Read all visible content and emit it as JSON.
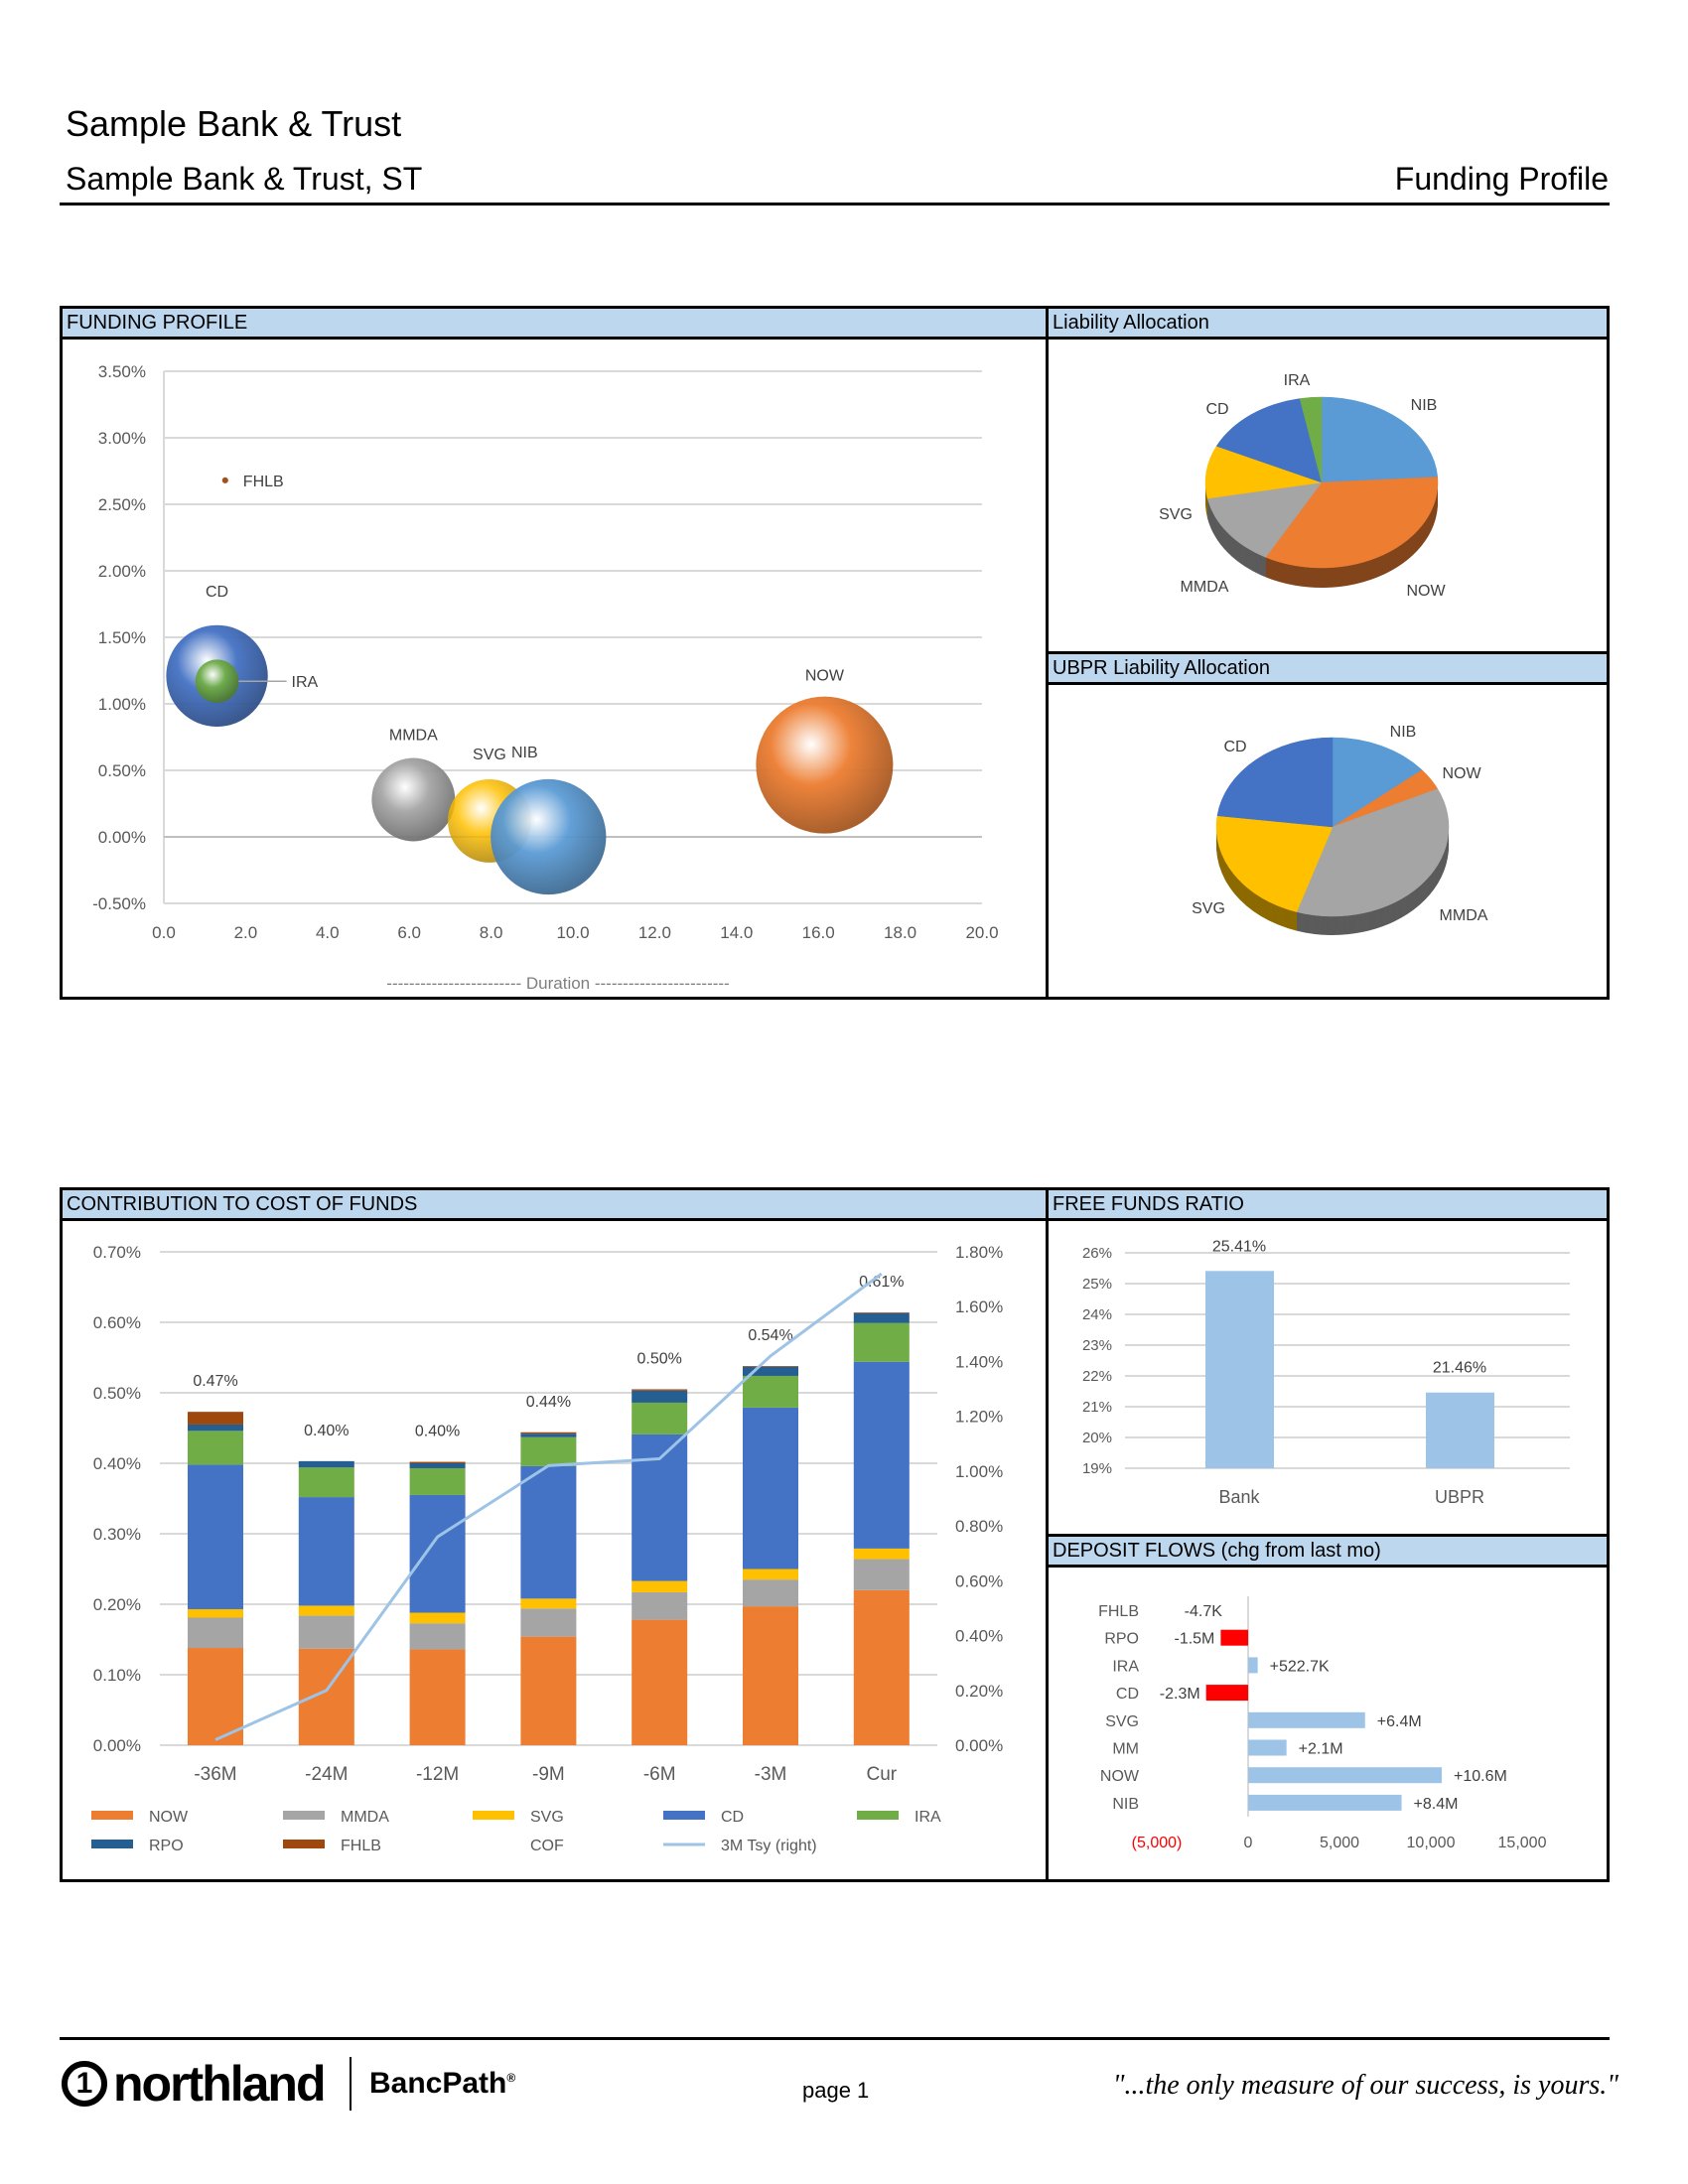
{
  "header": {
    "title": "Sample Bank & Trust",
    "subtitle": "Sample Bank & Trust, ST",
    "report_name": "Funding Profile"
  },
  "panels": {
    "funding_profile": "FUNDING PROFILE",
    "liability_allocation": "Liability Allocation",
    "ubpr_liability_allocation": "UBPR Liability Allocation",
    "cost_of_funds": "CONTRIBUTION TO COST OF FUNDS",
    "free_funds": "FREE FUNDS RATIO",
    "deposit_flows": "DEPOSIT FLOWS (chg from last mo)"
  },
  "colors": {
    "NOW": "#ed7d31",
    "MMDA": "#a5a5a5",
    "SVG": "#ffc000",
    "CD": "#4472c4",
    "IRA": "#70ad47",
    "RPO": "#255e91",
    "FHLB": "#9e480e",
    "NIB": "#5b9bd5",
    "tsy": "#9dc3e6",
    "light_bar": "#9dc3e6",
    "negative": "#ff0000",
    "header_bg": "#bdd7ee"
  },
  "chart_data": [
    {
      "id": "funding_profile",
      "type": "scatter",
      "subtype": "bubble",
      "xlabel": "------------------------ Duration ------------------------",
      "xlim": [
        0,
        20
      ],
      "ylim": [
        -0.5,
        3.5
      ],
      "x_ticks": [
        "0.0",
        "2.0",
        "4.0",
        "6.0",
        "8.0",
        "10.0",
        "12.0",
        "14.0",
        "16.0",
        "18.0",
        "20.0"
      ],
      "y_ticks": [
        "3.50%",
        "3.00%",
        "2.50%",
        "2.00%",
        "1.50%",
        "1.00%",
        "0.50%",
        "0.00%",
        "-0.50%"
      ],
      "grid": true,
      "points": [
        {
          "name": "FHLB",
          "x": 1.5,
          "y": 2.68,
          "size": 0.002
        },
        {
          "name": "CD",
          "x": 1.3,
          "y": 1.21,
          "size": 0.55
        },
        {
          "name": "IRA",
          "x": 1.3,
          "y": 1.17,
          "size": 0.1
        },
        {
          "name": "MMDA",
          "x": 6.1,
          "y": 0.28,
          "size": 0.37
        },
        {
          "name": "SVG",
          "x": 7.96,
          "y": 0.12,
          "size": 0.37
        },
        {
          "name": "NIB",
          "x": 9.4,
          "y": 0.0,
          "size": 0.71
        },
        {
          "name": "NOW",
          "x": 16.15,
          "y": 0.54,
          "size": 1.0
        }
      ]
    },
    {
      "id": "liability_allocation",
      "type": "pie",
      "slices": [
        {
          "name": "NIB",
          "value": 24
        },
        {
          "name": "NOW",
          "value": 34
        },
        {
          "name": "MMDA",
          "value": 14
        },
        {
          "name": "SVG",
          "value": 10
        },
        {
          "name": "CD",
          "value": 15
        },
        {
          "name": "IRA",
          "value": 3
        }
      ]
    },
    {
      "id": "ubpr_liability_allocation",
      "type": "pie",
      "slices": [
        {
          "name": "NIB",
          "value": 14
        },
        {
          "name": "NOW",
          "value": 4
        },
        {
          "name": "MMDA",
          "value": 37
        },
        {
          "name": "SVG",
          "value": 22
        },
        {
          "name": "CD",
          "value": 23
        }
      ]
    },
    {
      "id": "cost_of_funds",
      "type": "bar",
      "stacked": true,
      "categories": [
        "-36M",
        "-24M",
        "-12M",
        "-9M",
        "-6M",
        "-3M",
        "Cur"
      ],
      "ylim": [
        0,
        0.7
      ],
      "y_ticks": [
        "0.70%",
        "0.60%",
        "0.50%",
        "0.40%",
        "0.30%",
        "0.20%",
        "0.10%",
        "0.00%"
      ],
      "y2lim": [
        0,
        1.8
      ],
      "y2_ticks": [
        "1.80%",
        "1.60%",
        "1.40%",
        "1.20%",
        "1.00%",
        "0.80%",
        "0.60%",
        "0.40%",
        "0.20%",
        "0.00%"
      ],
      "grid": true,
      "series": [
        {
          "name": "NOW",
          "values": [
            0.138,
            0.137,
            0.136,
            0.154,
            0.178,
            0.197,
            0.22
          ]
        },
        {
          "name": "MMDA",
          "values": [
            0.043,
            0.047,
            0.037,
            0.04,
            0.039,
            0.038,
            0.044
          ]
        },
        {
          "name": "SVG",
          "values": [
            0.012,
            0.014,
            0.015,
            0.014,
            0.016,
            0.015,
            0.015
          ]
        },
        {
          "name": "CD",
          "values": [
            0.205,
            0.154,
            0.167,
            0.188,
            0.208,
            0.229,
            0.265
          ]
        },
        {
          "name": "IRA",
          "values": [
            0.048,
            0.042,
            0.038,
            0.041,
            0.045,
            0.045,
            0.055
          ]
        },
        {
          "name": "RPO",
          "values": [
            0.009,
            0.009,
            0.007,
            0.005,
            0.017,
            0.013,
            0.014
          ]
        },
        {
          "name": "FHLB",
          "values": [
            0.018,
            0.0,
            0.002,
            0.002,
            0.002,
            0.001,
            0.001
          ]
        }
      ],
      "totals": [
        "0.47%",
        "0.40%",
        "0.40%",
        "0.44%",
        "0.50%",
        "0.54%",
        "0.61%"
      ],
      "line": {
        "name": "3M Tsy (right)",
        "axis": "right",
        "values": [
          0.02,
          0.2,
          0.76,
          1.02,
          1.045,
          1.42,
          1.72
        ]
      },
      "legend": [
        "NOW",
        "MMDA",
        "SVG",
        "CD",
        "IRA",
        "RPO",
        "FHLB",
        "COF",
        "3M Tsy (right)"
      ],
      "legend_placement": "bottom"
    },
    {
      "id": "free_funds",
      "type": "bar",
      "categories": [
        "Bank",
        "UBPR"
      ],
      "values": [
        25.41,
        21.46
      ],
      "labels": [
        "25.41%",
        "21.46%"
      ],
      "ylim": [
        19,
        26
      ],
      "y_ticks": [
        "26%",
        "25%",
        "24%",
        "23%",
        "22%",
        "21%",
        "20%",
        "19%"
      ],
      "grid": true
    },
    {
      "id": "deposit_flows",
      "type": "bar",
      "orientation": "horizontal",
      "categories": [
        "FHLB",
        "RPO",
        "IRA",
        "CD",
        "SVG",
        "MM",
        "NOW",
        "NIB"
      ],
      "values": [
        -4.7,
        -1500,
        522.7,
        -2300,
        6400,
        2100,
        10600,
        8400
      ],
      "labels": [
        "-4.7K",
        "-1.5M",
        "+522.7K",
        "-2.3M",
        "+6.4M",
        "+2.1M",
        "+10.6M",
        "+8.4M"
      ],
      "xlim": [
        -5000,
        15000
      ],
      "x_ticks": [
        "(5,000)",
        "0",
        "5,000",
        "10,000",
        "15,000"
      ]
    }
  ],
  "footer": {
    "logo_text": "northland",
    "logo_mark": "1",
    "brand": "BancPath",
    "brand_mark": "®",
    "page": "page 1",
    "motto": "\"...the only measure of our success, is yours.\""
  }
}
